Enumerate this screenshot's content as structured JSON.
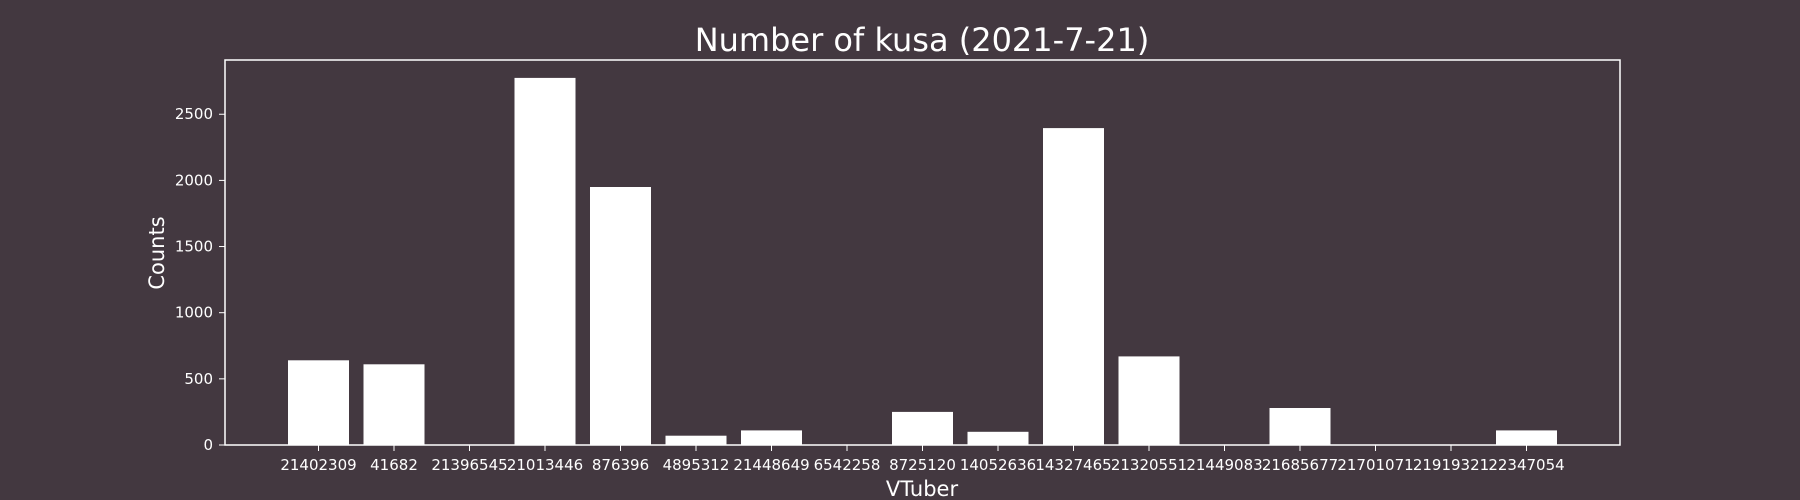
{
  "chart_data": {
    "type": "bar",
    "title": "Number of kusa (2021-7-21)",
    "xlabel": "VTuber",
    "ylabel": "Counts",
    "categories": [
      "21402309",
      "41682",
      "21396545",
      "21013446",
      "876396",
      "4895312",
      "21448649",
      "6542258",
      "8725120",
      "14052636",
      "14327465",
      "21320551",
      "21449083",
      "21685677",
      "21701071",
      "21919321",
      "22347054"
    ],
    "values": [
      640,
      610,
      0,
      2775,
      1950,
      70,
      110,
      0,
      250,
      100,
      2395,
      670,
      0,
      280,
      0,
      0,
      110
    ],
    "yticks": [
      0,
      500,
      1000,
      1500,
      2000,
      2500
    ],
    "ylim": [
      0,
      2910
    ],
    "grid": false,
    "legend": "none",
    "colors": {
      "background": "#433840",
      "bar": "#ffffff",
      "axes": "#ffffff",
      "text": "#ffffff"
    }
  }
}
